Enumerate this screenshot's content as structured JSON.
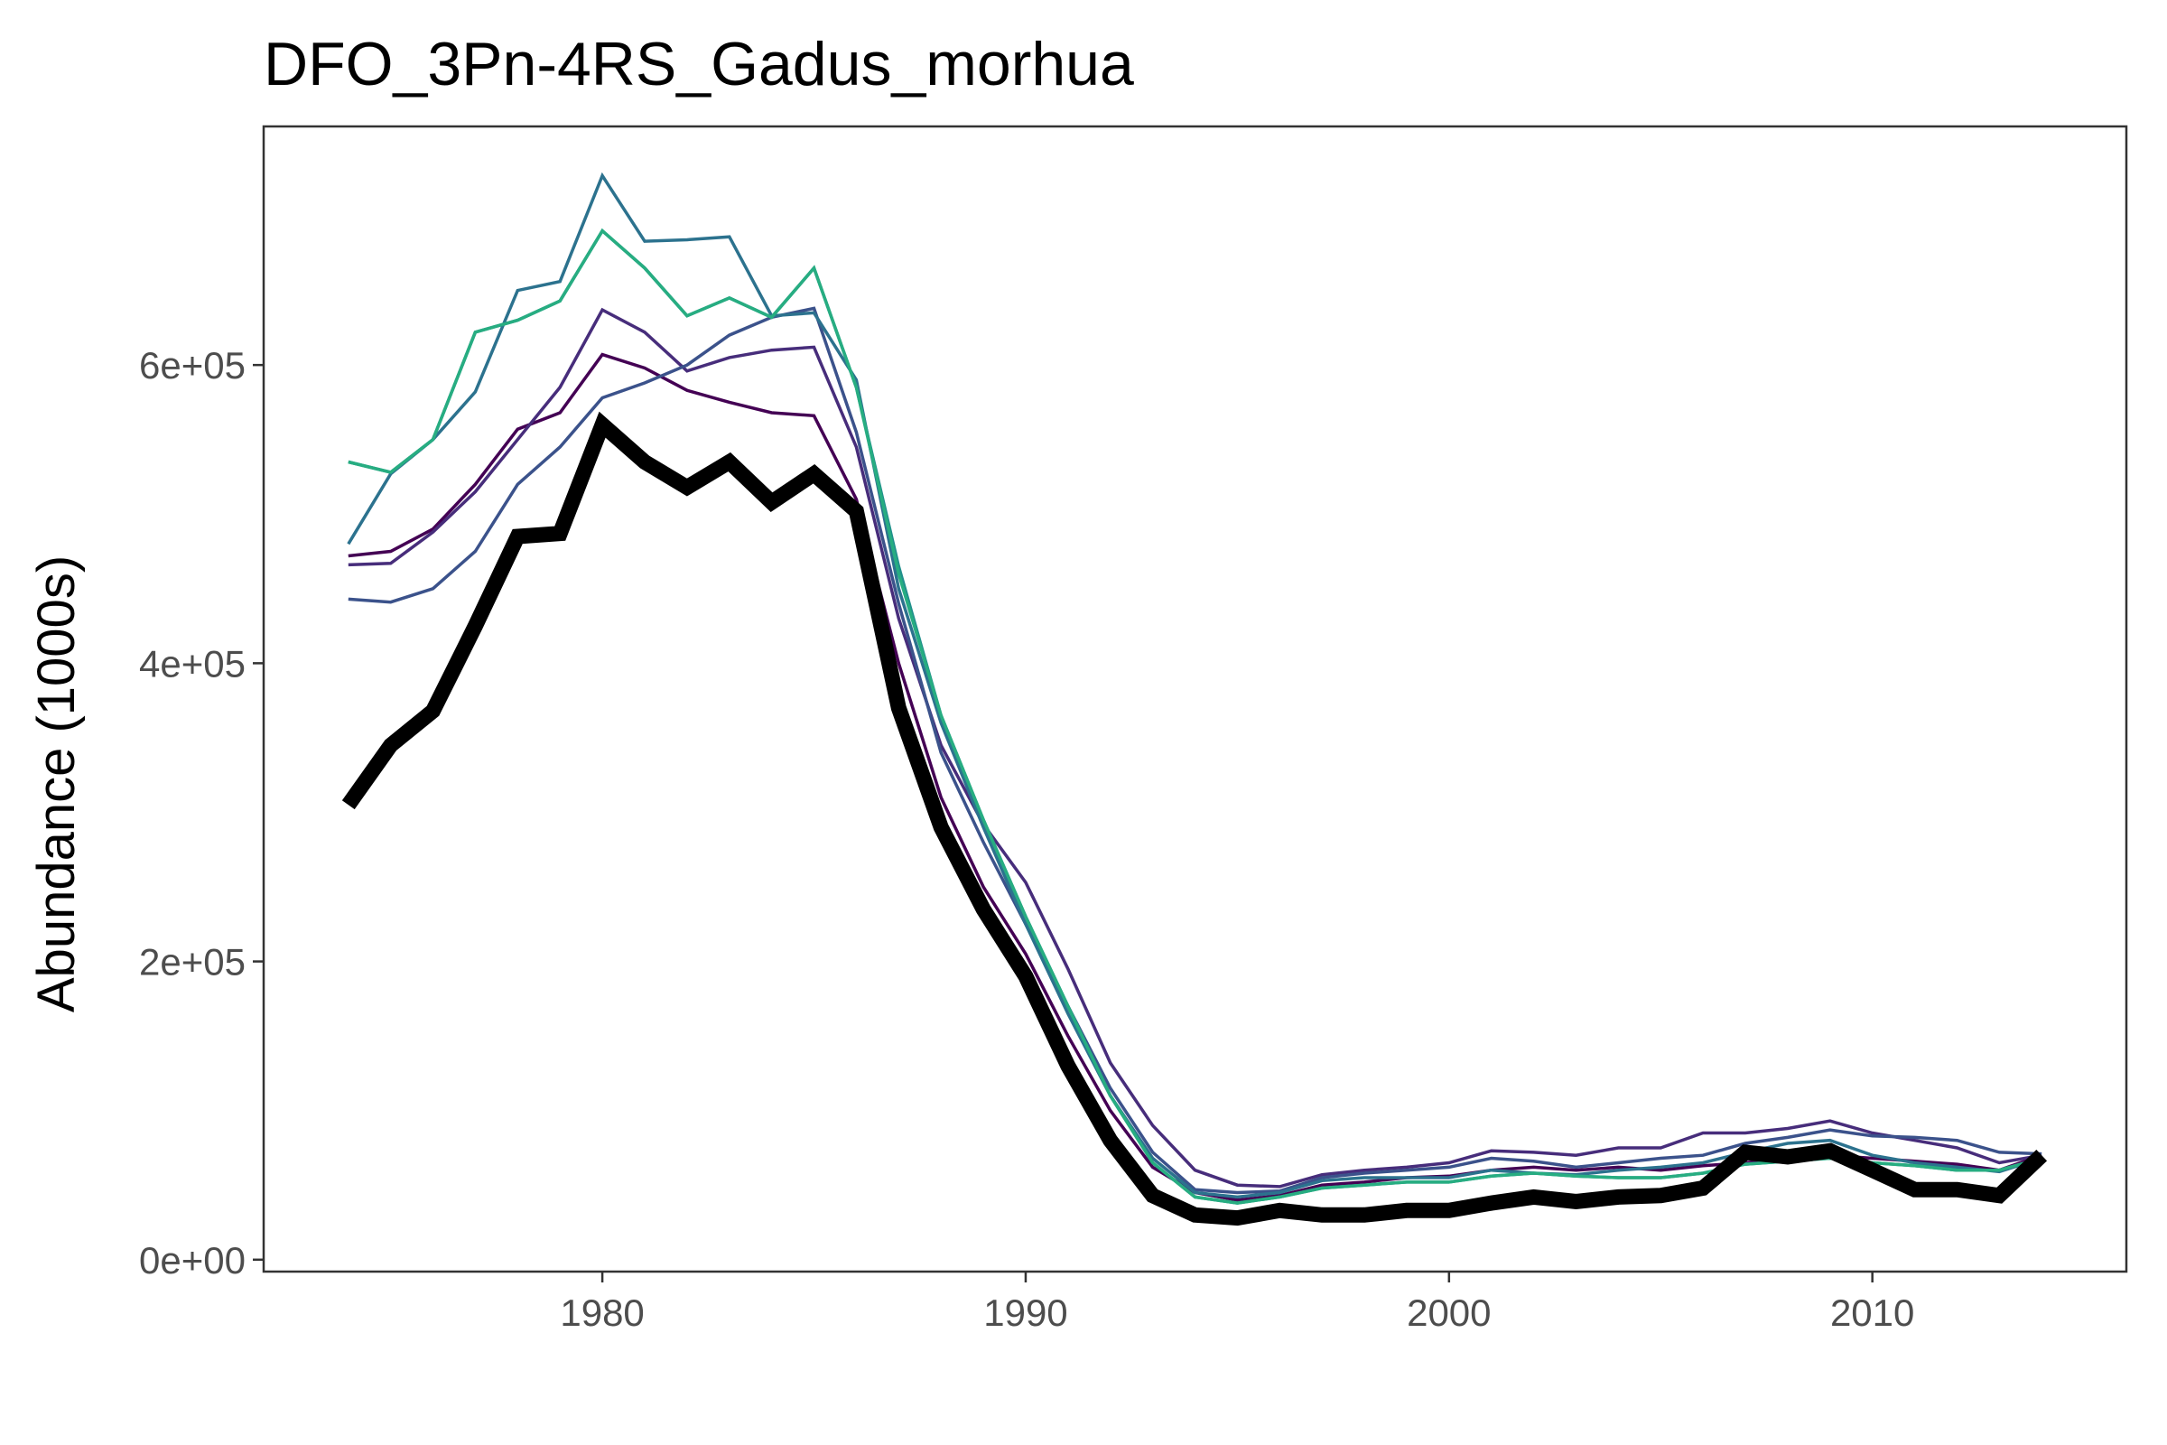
{
  "chart_data": {
    "type": "line",
    "title": "DFO_3Pn-4RS_Gadus_morhua",
    "xlabel": "",
    "ylabel": "Abundance (1000s)",
    "xlim": [
      1972,
      2016
    ],
    "ylim": [
      -8000,
      760000
    ],
    "x_ticks": [
      1980,
      1990,
      2000,
      2010
    ],
    "x_tick_labels": [
      "1980",
      "1990",
      "2000",
      "2010"
    ],
    "y_ticks": [
      0,
      200000,
      400000,
      600000
    ],
    "y_tick_labels": [
      "0e+00",
      "2e+05",
      "4e+05",
      "6e+05"
    ],
    "grid": false,
    "legend": "none",
    "x": [
      1974,
      1975,
      1976,
      1977,
      1978,
      1979,
      1980,
      1981,
      1982,
      1983,
      1984,
      1985,
      1986,
      1987,
      1988,
      1989,
      1990,
      1991,
      1992,
      1993,
      1994,
      1995,
      1996,
      1997,
      1998,
      1999,
      2000,
      2001,
      2002,
      2003,
      2004,
      2005,
      2006,
      2007,
      2008,
      2009,
      2010,
      2011,
      2012,
      2013,
      2014
    ],
    "series": [
      {
        "color": "#000000",
        "emphasis": true,
        "values": [
          305000,
          345000,
          368000,
          425000,
          485000,
          487000,
          560000,
          535000,
          518000,
          535000,
          508000,
          527000,
          502000,
          370000,
          290000,
          235000,
          190000,
          130000,
          80000,
          43000,
          30000,
          28000,
          33000,
          30000,
          30000,
          33000,
          33000,
          38000,
          42000,
          39000,
          42000,
          43000,
          48000,
          72000,
          69000,
          73000,
          60000,
          47000,
          47000,
          43000,
          70000
        ]
      },
      {
        "color": "#440154",
        "emphasis": false,
        "values": [
          472000,
          475000,
          490000,
          520000,
          557000,
          568000,
          607000,
          598000,
          583000,
          575000,
          568000,
          566000,
          510000,
          400000,
          310000,
          250000,
          205000,
          150000,
          100000,
          62000,
          45000,
          40000,
          43000,
          50000,
          52000,
          55000,
          56000,
          60000,
          62000,
          60000,
          62000,
          60000,
          63000,
          65000,
          68000,
          70000,
          68000,
          66000,
          64000,
          60000,
          70000
        ]
      },
      {
        "color": "#472D7B",
        "emphasis": false,
        "values": [
          466000,
          467000,
          488000,
          515000,
          550000,
          585000,
          637000,
          622000,
          596000,
          605000,
          610000,
          612000,
          545000,
          430000,
          345000,
          292000,
          253000,
          195000,
          132000,
          90000,
          60000,
          50000,
          49000,
          57000,
          60000,
          62000,
          65000,
          73000,
          72000,
          70000,
          75000,
          75000,
          85000,
          85000,
          88000,
          93000,
          85000,
          80000,
          75000,
          65000,
          70000
        ]
      },
      {
        "color": "#3B528B",
        "emphasis": false,
        "values": [
          443000,
          441000,
          450000,
          475000,
          520000,
          545000,
          578000,
          588000,
          600000,
          620000,
          632000,
          638000,
          555000,
          440000,
          340000,
          280000,
          225000,
          170000,
          115000,
          72000,
          47000,
          45000,
          46000,
          55000,
          58000,
          60000,
          62000,
          68000,
          66000,
          62000,
          65000,
          68000,
          70000,
          78000,
          82000,
          87000,
          83000,
          82000,
          80000,
          72000,
          71000
        ]
      },
      {
        "color": "#2C728E",
        "emphasis": false,
        "values": [
          480000,
          527000,
          550000,
          582000,
          650000,
          656000,
          727000,
          683000,
          684000,
          686000,
          633000,
          635000,
          590000,
          450000,
          360000,
          290000,
          225000,
          165000,
          110000,
          68000,
          45000,
          42000,
          45000,
          53000,
          55000,
          55000,
          55000,
          60000,
          58000,
          57000,
          60000,
          62000,
          65000,
          72000,
          78000,
          80000,
          70000,
          65000,
          62000,
          59000,
          68000
        ]
      },
      {
        "color": "#21908C",
        "emphasis": false,
        "values": [
          535000,
          528000,
          550000,
          622000,
          630000,
          643000,
          690000,
          665000,
          633000,
          645000,
          632000,
          665000,
          585000,
          465000,
          365000,
          295000,
          230000,
          170000,
          110000,
          65000,
          42000,
          38000,
          42000,
          48000,
          50000,
          52000,
          52000,
          56000,
          58000,
          56000,
          55000,
          55000,
          58000,
          64000,
          66000,
          68000,
          65000,
          63000,
          60000,
          60000,
          68000
        ]
      },
      {
        "color": "#27AD81",
        "emphasis": false,
        "values": [
          535000,
          528000,
          550000,
          622000,
          630000,
          643000,
          690000,
          665000,
          633000,
          645000,
          632000,
          665000,
          585000,
          460000,
          365000,
          295000,
          230000,
          170000,
          110000,
          65000,
          42000,
          38000,
          42000,
          48000,
          50000,
          52000,
          52000,
          56000,
          58000,
          56000,
          55000,
          55000,
          58000,
          64000,
          66000,
          68000,
          65000,
          63000,
          60000,
          60000,
          68000
        ]
      }
    ]
  }
}
